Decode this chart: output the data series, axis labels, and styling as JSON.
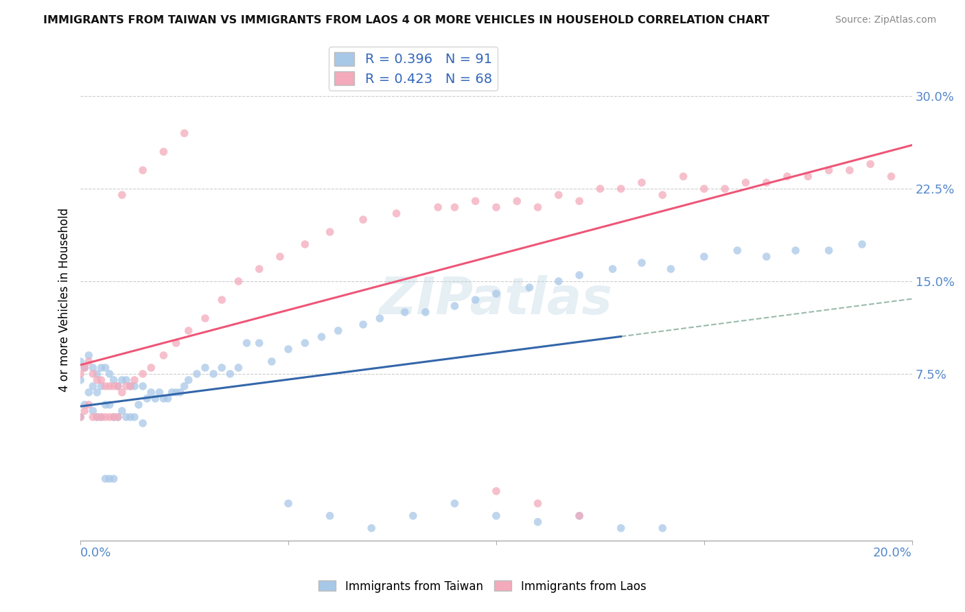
{
  "title": "IMMIGRANTS FROM TAIWAN VS IMMIGRANTS FROM LAOS 4 OR MORE VEHICLES IN HOUSEHOLD CORRELATION CHART",
  "source": "Source: ZipAtlas.com",
  "ylabel": "4 or more Vehicles in Household",
  "yticks": [
    "7.5%",
    "15.0%",
    "22.5%",
    "30.0%"
  ],
  "ytick_vals": [
    0.075,
    0.15,
    0.225,
    0.3
  ],
  "xlim": [
    0.0,
    0.2
  ],
  "ylim": [
    -0.06,
    0.33
  ],
  "taiwan_R": 0.396,
  "taiwan_N": 91,
  "laos_R": 0.423,
  "laos_N": 68,
  "taiwan_color": "#A8C8E8",
  "laos_color": "#F4AABB",
  "taiwan_line_color": "#3366AA",
  "laos_line_color": "#EE5577",
  "dashed_line_color": "#99BBAA",
  "watermark_text": "ZIPatlas",
  "taiwan_scatter_x": [
    0.0,
    0.0,
    0.0,
    0.001,
    0.001,
    0.002,
    0.002,
    0.003,
    0.003,
    0.003,
    0.004,
    0.004,
    0.004,
    0.005,
    0.005,
    0.005,
    0.006,
    0.006,
    0.006,
    0.007,
    0.007,
    0.007,
    0.008,
    0.008,
    0.008,
    0.009,
    0.009,
    0.01,
    0.01,
    0.011,
    0.011,
    0.012,
    0.012,
    0.013,
    0.013,
    0.014,
    0.015,
    0.015,
    0.016,
    0.017,
    0.018,
    0.019,
    0.02,
    0.021,
    0.022,
    0.023,
    0.024,
    0.025,
    0.026,
    0.028,
    0.03,
    0.032,
    0.034,
    0.036,
    0.038,
    0.04,
    0.043,
    0.046,
    0.05,
    0.054,
    0.058,
    0.062,
    0.068,
    0.072,
    0.078,
    0.083,
    0.09,
    0.095,
    0.1,
    0.108,
    0.115,
    0.12,
    0.128,
    0.135,
    0.142,
    0.15,
    0.158,
    0.165,
    0.172,
    0.18,
    0.188,
    0.05,
    0.06,
    0.07,
    0.08,
    0.09,
    0.1,
    0.11,
    0.12,
    0.13,
    0.14
  ],
  "taiwan_scatter_y": [
    0.04,
    0.07,
    0.085,
    0.05,
    0.08,
    0.06,
    0.09,
    0.045,
    0.065,
    0.08,
    0.04,
    0.06,
    0.075,
    0.04,
    0.065,
    0.08,
    -0.01,
    0.05,
    0.08,
    -0.01,
    0.05,
    0.075,
    -0.01,
    0.04,
    0.07,
    0.04,
    0.065,
    0.045,
    0.07,
    0.04,
    0.07,
    0.04,
    0.065,
    0.04,
    0.065,
    0.05,
    0.035,
    0.065,
    0.055,
    0.06,
    0.055,
    0.06,
    0.055,
    0.055,
    0.06,
    0.06,
    0.06,
    0.065,
    0.07,
    0.075,
    0.08,
    0.075,
    0.08,
    0.075,
    0.08,
    0.1,
    0.1,
    0.085,
    0.095,
    0.1,
    0.105,
    0.11,
    0.115,
    0.12,
    0.125,
    0.125,
    0.13,
    0.135,
    0.14,
    0.145,
    0.15,
    0.155,
    0.16,
    0.165,
    0.16,
    0.17,
    0.175,
    0.17,
    0.175,
    0.175,
    0.18,
    -0.03,
    -0.04,
    -0.05,
    -0.04,
    -0.03,
    -0.04,
    -0.045,
    -0.04,
    -0.05,
    -0.05
  ],
  "laos_scatter_x": [
    0.0,
    0.0,
    0.001,
    0.001,
    0.002,
    0.002,
    0.003,
    0.003,
    0.004,
    0.004,
    0.005,
    0.005,
    0.006,
    0.006,
    0.007,
    0.007,
    0.008,
    0.008,
    0.009,
    0.009,
    0.01,
    0.011,
    0.012,
    0.013,
    0.015,
    0.017,
    0.02,
    0.023,
    0.026,
    0.03,
    0.034,
    0.038,
    0.043,
    0.048,
    0.054,
    0.06,
    0.068,
    0.076,
    0.086,
    0.095,
    0.105,
    0.115,
    0.125,
    0.135,
    0.145,
    0.155,
    0.165,
    0.175,
    0.185,
    0.195,
    0.01,
    0.015,
    0.02,
    0.025,
    0.09,
    0.1,
    0.11,
    0.12,
    0.13,
    0.14,
    0.15,
    0.16,
    0.17,
    0.18,
    0.19,
    0.1,
    0.11,
    0.12
  ],
  "laos_scatter_y": [
    0.04,
    0.075,
    0.045,
    0.08,
    0.05,
    0.085,
    0.04,
    0.075,
    0.04,
    0.07,
    0.04,
    0.07,
    0.04,
    0.065,
    0.04,
    0.065,
    0.04,
    0.065,
    0.04,
    0.065,
    0.06,
    0.065,
    0.065,
    0.07,
    0.075,
    0.08,
    0.09,
    0.1,
    0.11,
    0.12,
    0.135,
    0.15,
    0.16,
    0.17,
    0.18,
    0.19,
    0.2,
    0.205,
    0.21,
    0.215,
    0.215,
    0.22,
    0.225,
    0.23,
    0.235,
    0.225,
    0.23,
    0.235,
    0.24,
    0.235,
    0.22,
    0.24,
    0.255,
    0.27,
    0.21,
    0.21,
    0.21,
    0.215,
    0.225,
    0.22,
    0.225,
    0.23,
    0.235,
    0.24,
    0.245,
    -0.02,
    -0.03,
    -0.04
  ]
}
